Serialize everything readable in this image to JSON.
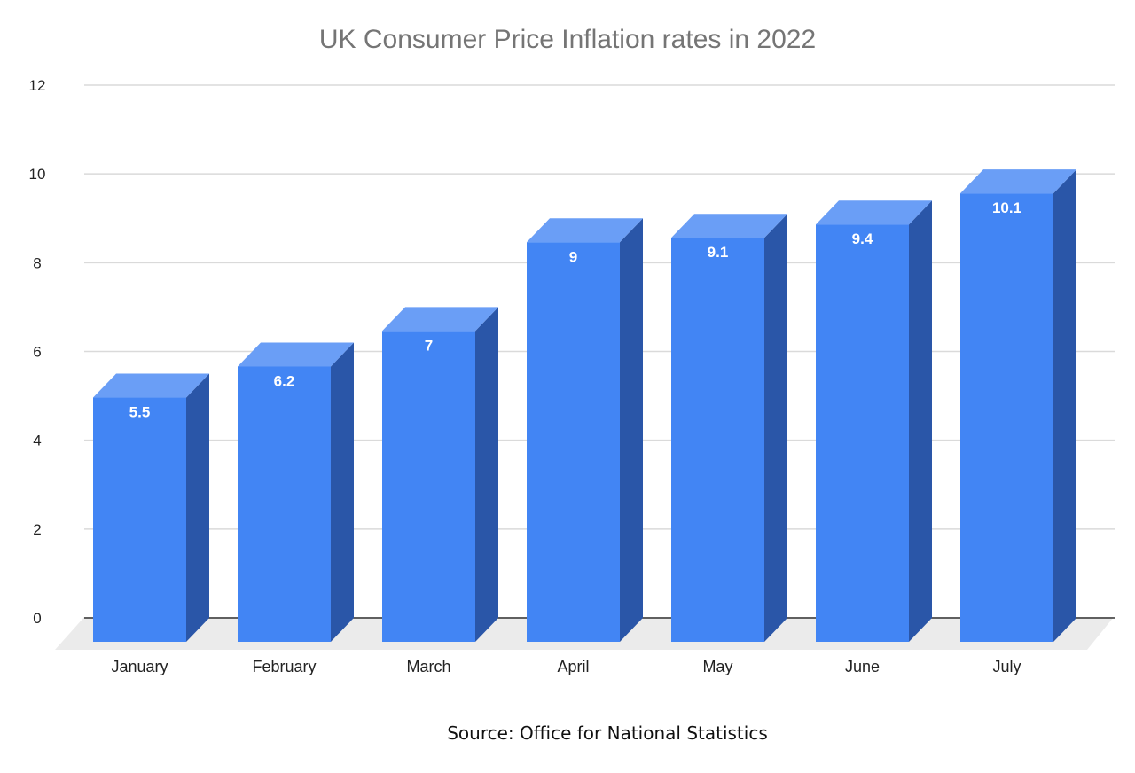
{
  "colors": {
    "bar_front": "#4285F4",
    "bar_top": "#6A9EF6",
    "bar_side": "#2A56A8",
    "grid": "#DADADA",
    "floor": "#EBEBEB",
    "axis": "#333333"
  },
  "chart_data": {
    "type": "bar",
    "style": "3d",
    "title": "UK Consumer Price Inflation rates in 2022",
    "xlabel": "",
    "ylabel": "",
    "categories": [
      "January",
      "February",
      "March",
      "April",
      "May",
      "June",
      "July"
    ],
    "values": [
      5.5,
      6.2,
      7,
      9,
      9.1,
      9.4,
      10.1
    ],
    "data_labels": [
      "5.5",
      "6.2",
      "7",
      "9",
      "9.1",
      "9.4",
      "10.1"
    ],
    "ylim": [
      0,
      12
    ],
    "yticks": [
      0,
      2,
      4,
      6,
      8,
      10,
      12
    ],
    "ytick_labels": [
      "0",
      "2",
      "4",
      "6",
      "8",
      "10",
      "12"
    ],
    "grid": true,
    "legend": "none"
  },
  "footer": {
    "source": "Source: Office for National Statistics"
  }
}
